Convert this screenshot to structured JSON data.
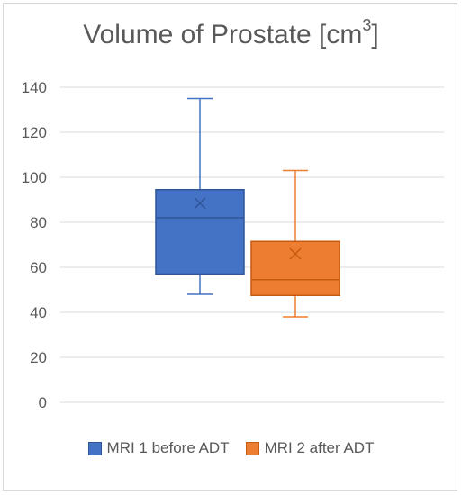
{
  "chart_data": {
    "type": "boxplot",
    "title": "Volume of Prostate [cm",
    "title_superscript": "3",
    "title_suffix": "]",
    "ylim": [
      0,
      140
    ],
    "yticks": [
      "0",
      "20",
      "40",
      "60",
      "80",
      "100",
      "120",
      "140"
    ],
    "grid": true,
    "legend_position": "bottom",
    "series": [
      {
        "name": "MRI 1 before ADT",
        "color": "#4472c4",
        "border": "#2f5597",
        "min": 48,
        "q1": 57,
        "median": 82,
        "q3": 94.5,
        "max": 135,
        "mean": 88.5
      },
      {
        "name": "MRI 2 after ADT",
        "color": "#ed7d31",
        "border": "#c55a11",
        "min": 38,
        "q1": 47.5,
        "median": 54.5,
        "q3": 71.5,
        "max": 103,
        "mean": 66
      }
    ]
  }
}
